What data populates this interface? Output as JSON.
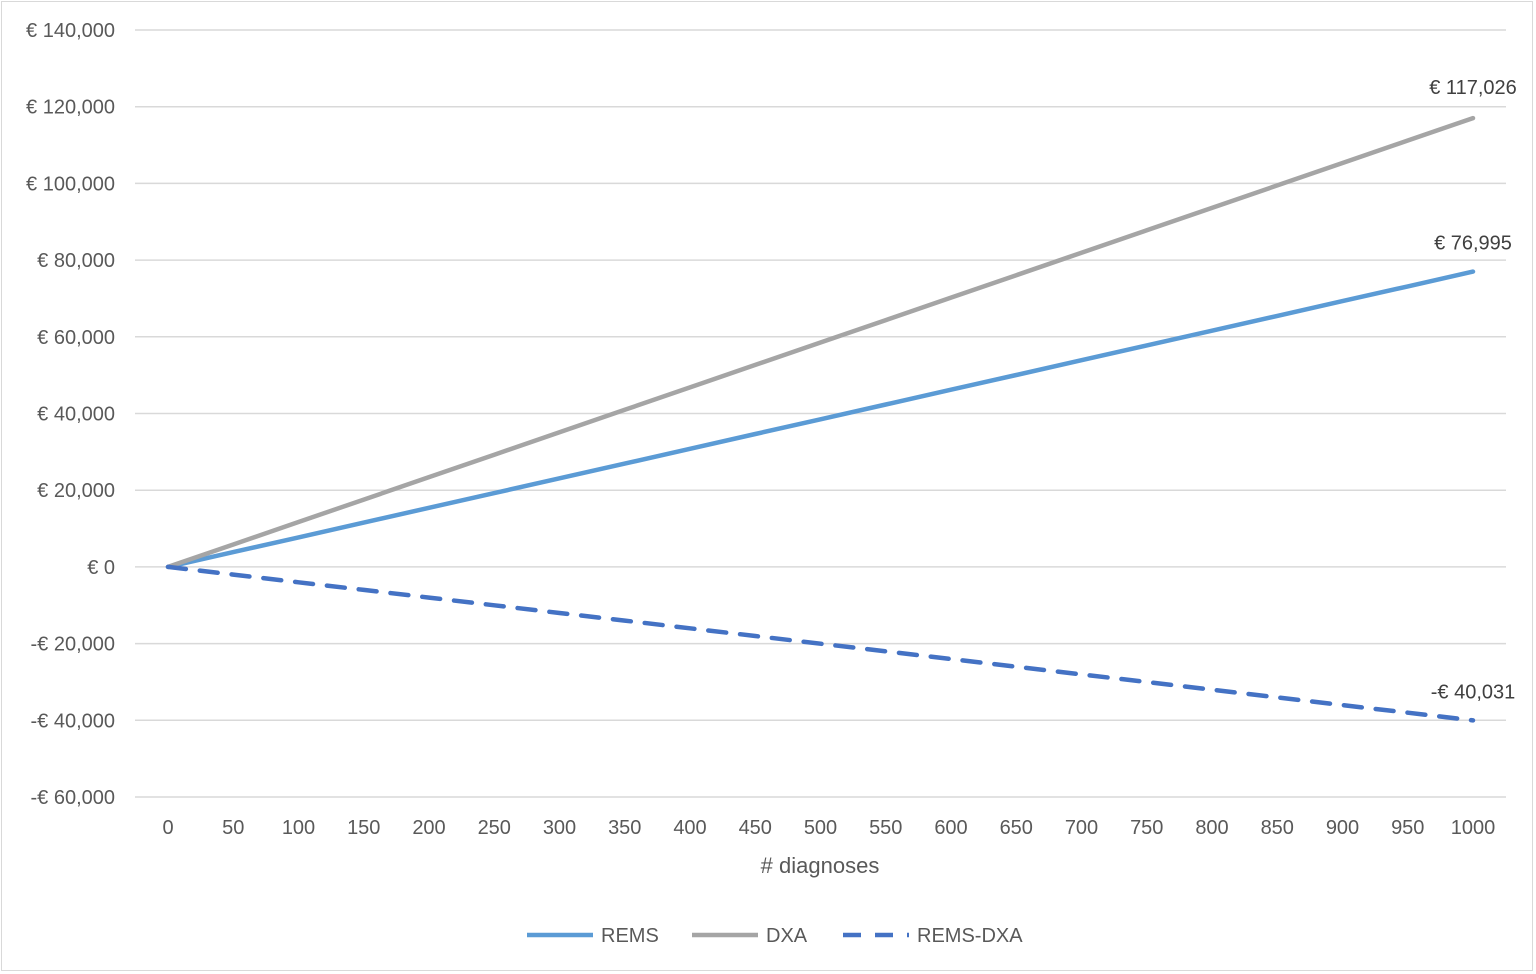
{
  "chart_data": {
    "type": "line",
    "title": "",
    "xlabel": "# diagnoses",
    "ylabel": "",
    "x": [
      0,
      50,
      100,
      150,
      200,
      250,
      300,
      350,
      400,
      450,
      500,
      550,
      600,
      650,
      700,
      750,
      800,
      850,
      900,
      950,
      1000
    ],
    "xlim": [
      0,
      1000
    ],
    "ylim": [
      -60000,
      140000
    ],
    "y_ticks": [
      140000,
      120000,
      100000,
      80000,
      60000,
      40000,
      20000,
      0,
      -20000,
      -40000,
      -60000
    ],
    "y_tick_labels": [
      "€ 140,000",
      "€ 120,000",
      "€ 100,000",
      "€ 80,000",
      "€ 60,000",
      "€ 40,000",
      "€ 20,000",
      "€ 0",
      "-€ 20,000",
      "-€ 40,000",
      "-€ 60,000"
    ],
    "x_tick_labels": [
      "0",
      "50",
      "100",
      "150",
      "200",
      "250",
      "300",
      "350",
      "400",
      "450",
      "500",
      "550",
      "600",
      "650",
      "700",
      "750",
      "800",
      "850",
      "900",
      "950",
      "1000"
    ],
    "grid": true,
    "legend_position": "bottom",
    "series": [
      {
        "name": "REMS",
        "color": "#5b9bd5",
        "dashed": false,
        "values": [
          0,
          3850,
          7699,
          11549,
          15399,
          19249,
          23099,
          26948,
          30798,
          34648,
          38498,
          42347,
          46197,
          50047,
          53897,
          57746,
          61596,
          65446,
          69296,
          73145,
          76995
        ],
        "end_label": "€ 76,995"
      },
      {
        "name": "DXA",
        "color": "#a5a5a5",
        "dashed": false,
        "values": [
          0,
          5851,
          11703,
          17554,
          23405,
          29257,
          35108,
          40959,
          46810,
          52662,
          58513,
          64364,
          70216,
          76067,
          81918,
          87770,
          93621,
          99472,
          105323,
          111175,
          117026
        ],
        "end_label": "€ 117,026"
      },
      {
        "name": "REMS-DXA",
        "color": "#4472c4",
        "dashed": true,
        "values": [
          0,
          -2002,
          -4003,
          -6005,
          -8006,
          -10008,
          -12009,
          -14011,
          -16012,
          -18014,
          -20016,
          -22017,
          -24019,
          -26020,
          -28022,
          -30023,
          -32025,
          -34026,
          -36028,
          -38029,
          -40031
        ],
        "end_label": "-€ 40,031"
      }
    ]
  }
}
